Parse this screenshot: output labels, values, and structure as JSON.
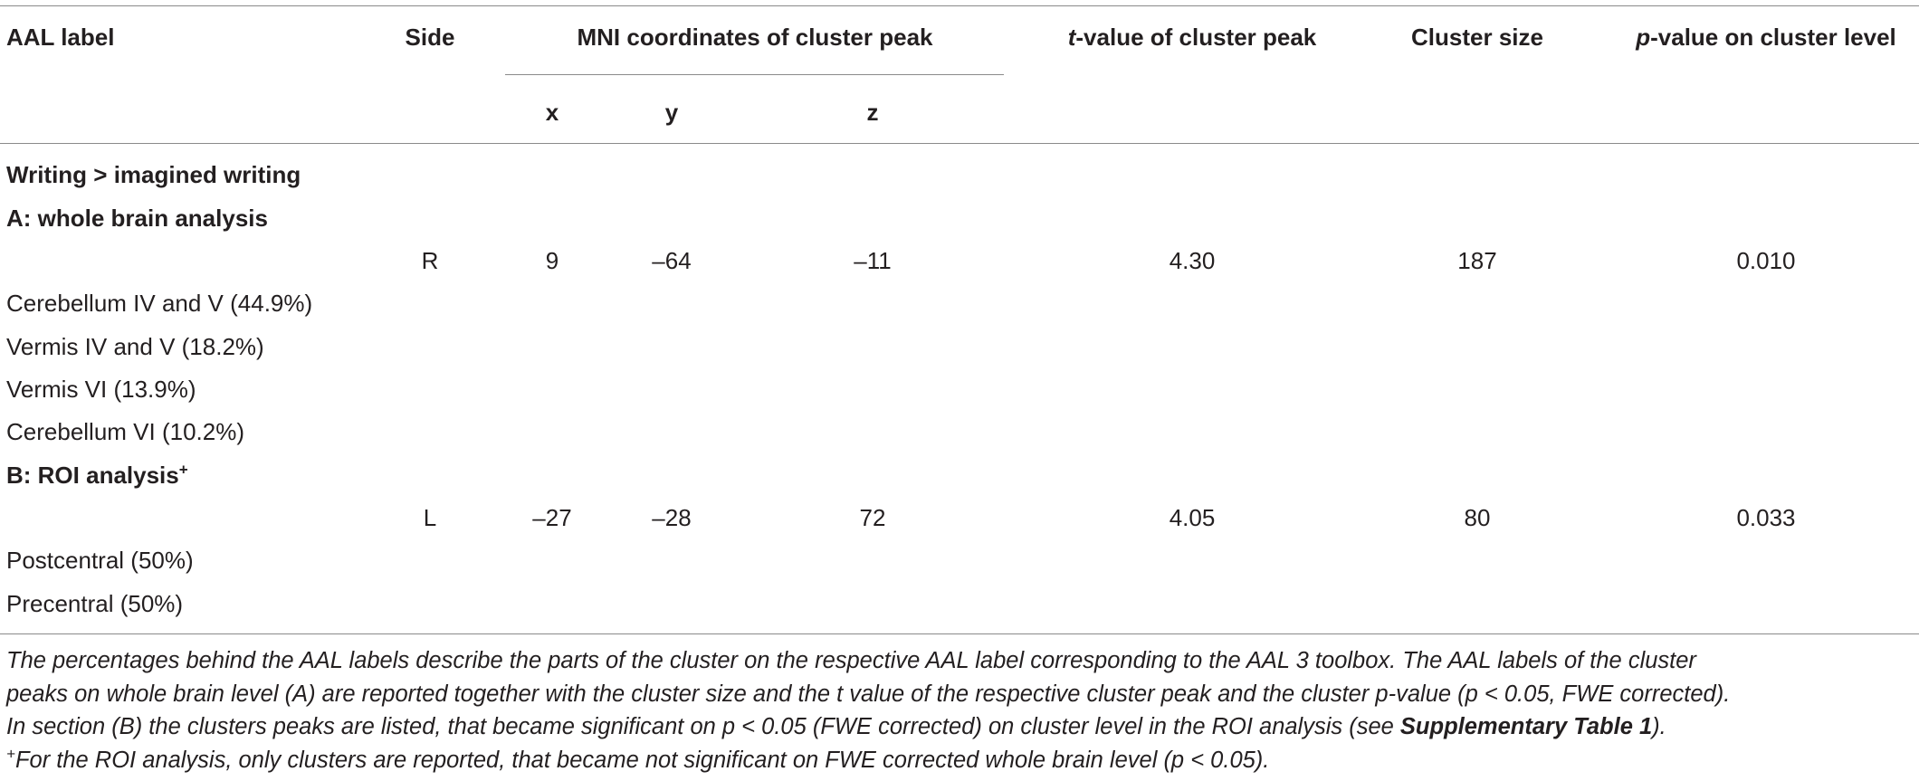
{
  "header": {
    "columns": [
      {
        "text": "AAL label"
      },
      {
        "text": "Side"
      },
      {
        "text": "MNI coordinates of cluster peak"
      },
      {
        "italic": "t",
        "text": "-value of cluster peak"
      },
      {
        "text": "Cluster size"
      },
      {
        "italic": "p",
        "text": "-value on cluster level"
      }
    ],
    "subcolumns": [
      "x",
      "y",
      "z"
    ]
  },
  "body": [
    {
      "heading": "Writing > imagined writing"
    },
    {
      "heading": "A: whole brain analysis"
    },
    {
      "cells": {
        "side": "R",
        "x": "9",
        "y": "–64",
        "z": "–11",
        "t": "4.30",
        "size": "187",
        "p": "0.010"
      }
    },
    {
      "label": "Cerebellum IV and V (44.9%)"
    },
    {
      "label": "Vermis IV and V (18.2%)"
    },
    {
      "label": "Vermis VI (13.9%)"
    },
    {
      "label": "Cerebellum VI (10.2%)"
    },
    {
      "heading": "B: ROI analysis",
      "sup": "+"
    },
    {
      "cells": {
        "side": "L",
        "x": "–27",
        "y": "–28",
        "z": "72",
        "t": "4.05",
        "size": "80",
        "p": "0.033"
      }
    },
    {
      "label": "Postcentral (50%)"
    },
    {
      "label": "Precentral (50%)"
    }
  ],
  "footnote": {
    "lines": [
      {
        "text": "The percentages behind the AAL labels describe the parts of the cluster on the respective AAL label corresponding to the AAL 3 toolbox. The AAL labels of the cluster"
      },
      {
        "text": "peaks on whole brain level (A) are reported together with the cluster size and the t value of the respective cluster peak and the cluster p-value (p < 0.05, FWE corrected)."
      },
      {
        "text": "In section (B) the clusters peaks are listed, that became significant on p < 0.05 (FWE corrected) on cluster level in the ROI analysis (see ",
        "bold": "Supplementary Table 1",
        "after": ")."
      },
      {
        "sup": "+",
        "text": "For the ROI analysis, only clusters are reported, that became not significant on FWE corrected whole brain level (p < 0.05)."
      }
    ]
  }
}
